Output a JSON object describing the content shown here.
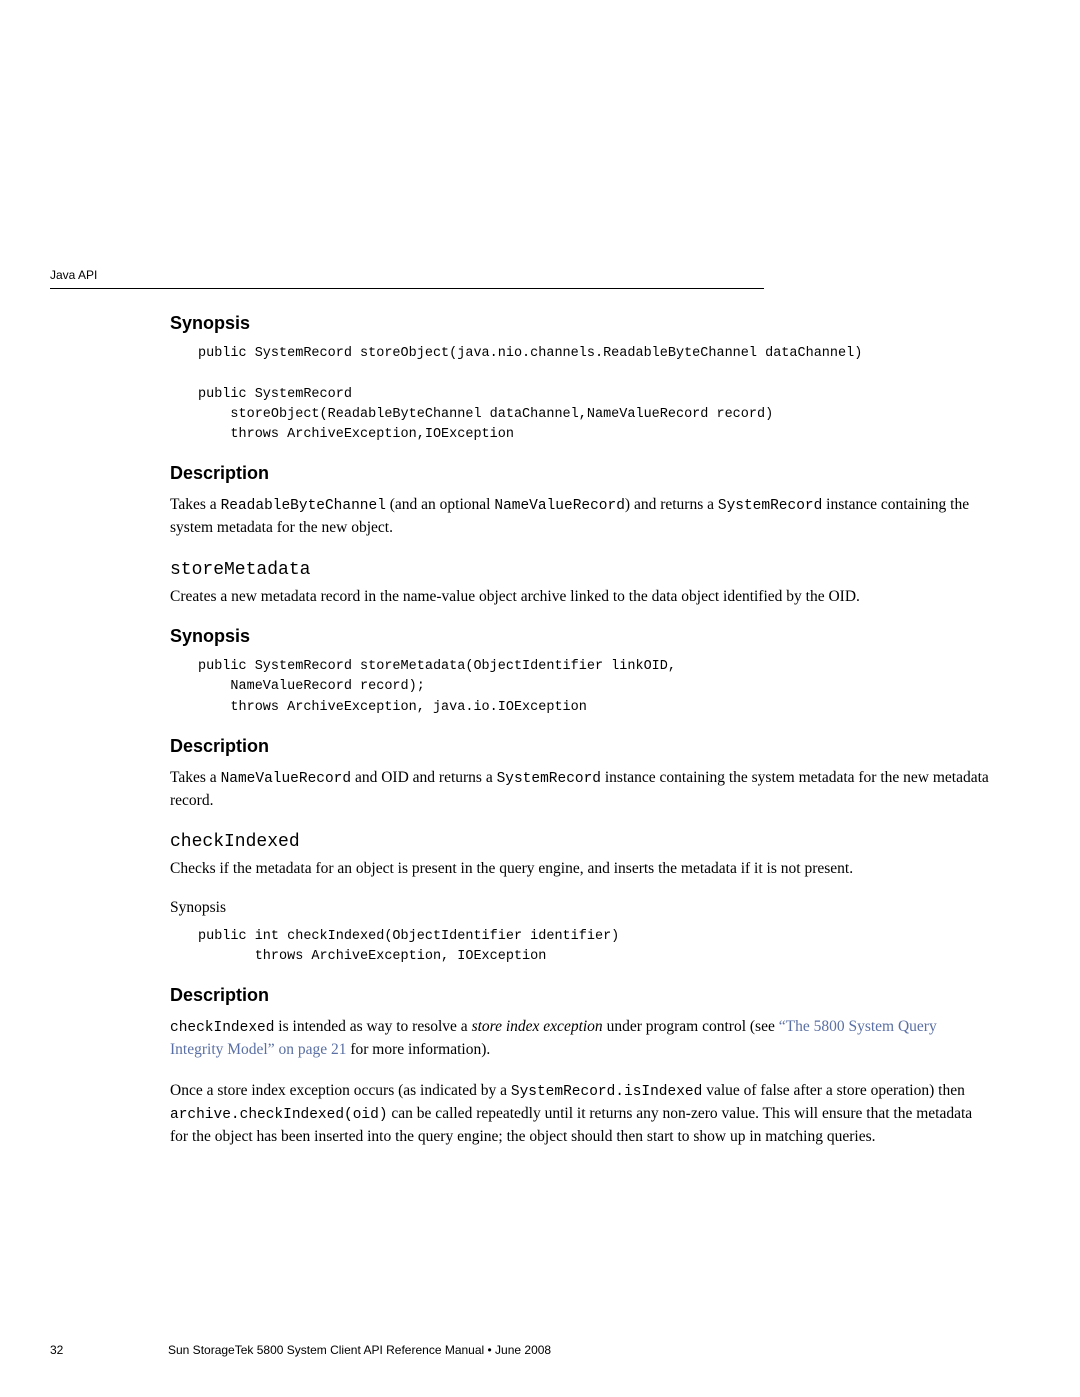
{
  "header": {
    "label": "Java API"
  },
  "sections": {
    "synopsis1": {
      "heading": "Synopsis",
      "code": "public SystemRecord storeObject(java.nio.channels.ReadableByteChannel dataChannel)\n\npublic SystemRecord\n    storeObject(ReadableByteChannel dataChannel,NameValueRecord record)\n    throws ArchiveException,IOException"
    },
    "description1": {
      "heading": "Description",
      "text_pre": "Takes a ",
      "code1": "ReadableByteChannel",
      "text_mid1": " (and an optional ",
      "code2": "NameValueRecord",
      "text_mid2": ") and returns a ",
      "code3": "SystemRecord",
      "text_post": " instance containing the system metadata for the new object."
    },
    "storeMetadata": {
      "heading": "storeMetadata",
      "desc": "Creates a new metadata record in the name-value object archive linked to the data object identified by the OID."
    },
    "synopsis2": {
      "heading": "Synopsis",
      "code": "public SystemRecord storeMetadata(ObjectIdentifier linkOID,\n    NameValueRecord record);\n    throws ArchiveException, java.io.IOException"
    },
    "description2": {
      "heading": "Description",
      "text_pre": "Takes a ",
      "code1": "NameValueRecord",
      "text_mid1": " and OID and returns a ",
      "code2": "SystemRecord",
      "text_post": " instance containing the system metadata for the new metadata record."
    },
    "checkIndexed": {
      "heading": "checkIndexed",
      "desc": "Checks if the metadata for an object is present in the query engine, and inserts the metadata if it is not present.",
      "synopsis_label": "Synopsis",
      "code": "public int checkIndexed(ObjectIdentifier identifier)\n       throws ArchiveException, IOException"
    },
    "description3": {
      "heading": "Description",
      "p1_code": "checkIndexed",
      "p1_text1": " is intended as way to resolve a ",
      "p1_italic": "store index exception",
      "p1_text2": " under program control (see ",
      "p1_link": "“The 5800 System Query Integrity Model” on page 21",
      "p1_text3": " for more information).",
      "p2_text1": "Once a store index exception occurs (as indicated by a ",
      "p2_code1": "SystemRecord.isIndexed",
      "p2_text2": " value of false after a store operation) then ",
      "p2_code2": "archive.checkIndexed(oid)",
      "p2_text3": " can be called repeatedly until it returns any non-zero value. This will ensure that the metadata for the object has been inserted into the query engine; the object should then start to show up in matching queries."
    }
  },
  "footer": {
    "page": "32",
    "title": "Sun StorageTek 5800 System Client API Reference Manual • June 2008"
  },
  "colors": {
    "link": "#5a6fa3",
    "text": "#000000",
    "background": "#ffffff"
  },
  "typography": {
    "body_font": "Georgia, serif",
    "heading_font": "Arial, sans-serif",
    "code_font": "Courier New, monospace",
    "heading_size_pt": 14,
    "body_size_pt": 11.5,
    "code_size_pt": 10
  }
}
